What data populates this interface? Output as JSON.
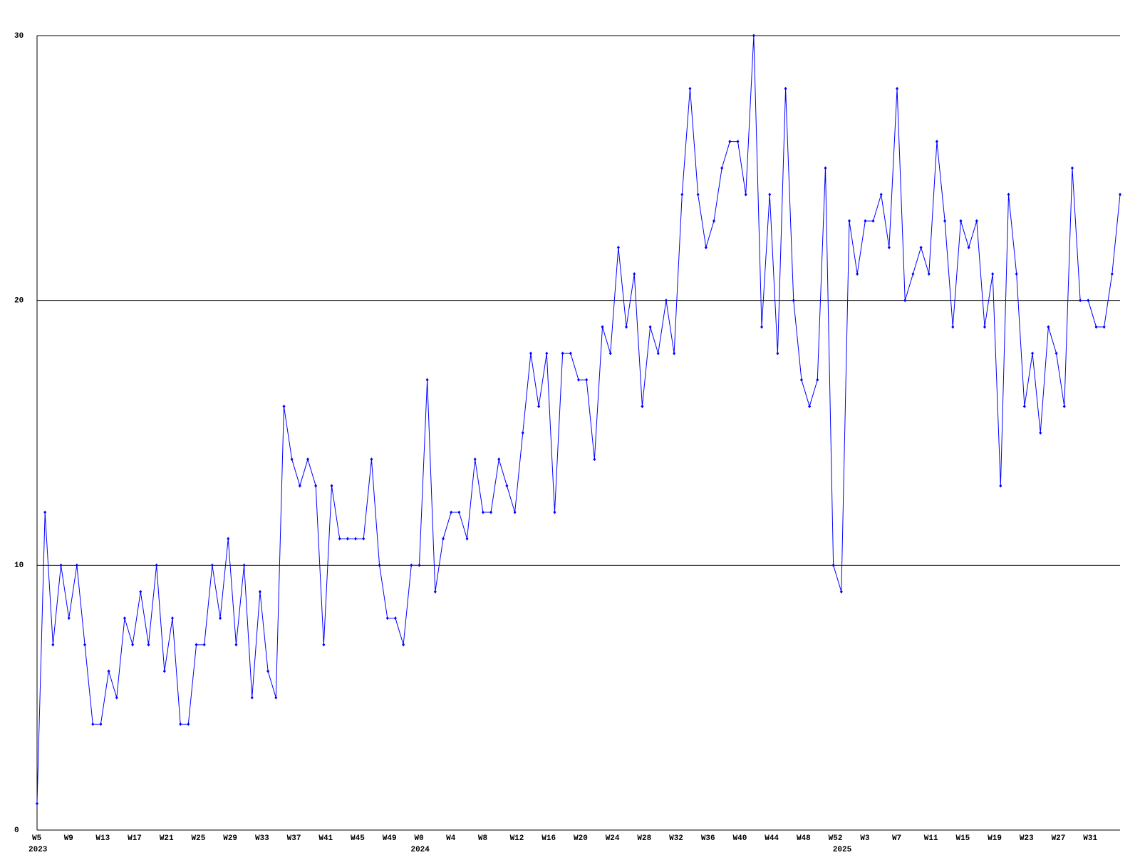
{
  "chart_data": {
    "type": "line",
    "categories": [
      "W5",
      null,
      null,
      null,
      "W9",
      null,
      null,
      null,
      "W13",
      null,
      null,
      null,
      "W17",
      null,
      null,
      null,
      "W21",
      null,
      null,
      null,
      "W25",
      null,
      null,
      null,
      "W29",
      null,
      null,
      null,
      "W33",
      null,
      null,
      null,
      "W37",
      null,
      null,
      null,
      "W41",
      null,
      null,
      null,
      "W45",
      null,
      null,
      null,
      "W49",
      null,
      null,
      null,
      "W0",
      null,
      null,
      null,
      "W4",
      null,
      null,
      null,
      "W8",
      null,
      null,
      null,
      "W12",
      null,
      null,
      null,
      "W16",
      null,
      null,
      null,
      "W20",
      null,
      null,
      null,
      "W24",
      null,
      null,
      null,
      "W28",
      null,
      null,
      null,
      "W32",
      null,
      null,
      null,
      "W36",
      null,
      null,
      null,
      "W40",
      null,
      null,
      null,
      "W44",
      null,
      null,
      null,
      "W48",
      null,
      null,
      null,
      "W52",
      null,
      null,
      null,
      "W3",
      null,
      null,
      null,
      "W7",
      null,
      null,
      null,
      "W11",
      null,
      null,
      null,
      "W15",
      null,
      null,
      null,
      "W19",
      null,
      null,
      null,
      "W23",
      null,
      null,
      null,
      "W27",
      null,
      null,
      null,
      "W31",
      null,
      null,
      null,
      null
    ],
    "x_groups": [
      {
        "label": "2023",
        "from": 0
      },
      {
        "label": "2024",
        "from": 48
      },
      {
        "label": "2025",
        "from": 101
      }
    ],
    "series": [
      {
        "color": "#0000ff",
        "values": [
          1,
          12,
          7,
          10,
          8,
          10,
          7,
          4,
          4,
          6,
          5,
          8,
          7,
          9,
          7,
          10,
          6,
          8,
          4,
          4,
          7,
          7,
          10,
          8,
          11,
          7,
          10,
          5,
          9,
          6,
          5,
          16,
          14,
          13,
          14,
          13,
          7,
          13,
          11,
          11,
          11,
          11,
          14,
          10,
          8,
          8,
          7,
          10,
          10,
          17,
          9,
          11,
          12,
          12,
          11,
          14,
          12,
          12,
          14,
          13,
          12,
          15,
          18,
          16,
          18,
          12,
          18,
          18,
          17,
          17,
          14,
          19,
          18,
          22,
          19,
          21,
          16,
          19,
          18,
          20,
          18,
          24,
          28,
          24,
          22,
          23,
          25,
          26,
          26,
          24,
          30,
          19,
          24,
          18,
          28,
          20,
          17,
          16,
          17,
          25,
          10,
          9,
          23,
          21,
          23,
          23,
          24,
          22,
          28,
          20,
          21,
          22,
          21,
          26,
          23,
          19,
          23,
          22,
          23,
          19,
          21,
          13,
          24,
          21,
          16,
          18,
          15,
          19,
          18,
          16,
          25,
          20,
          20,
          19,
          19,
          21,
          24
        ]
      }
    ],
    "ylim": [
      0,
      30
    ],
    "yticks": [
      0,
      10,
      20,
      30
    ],
    "grid": true
  }
}
